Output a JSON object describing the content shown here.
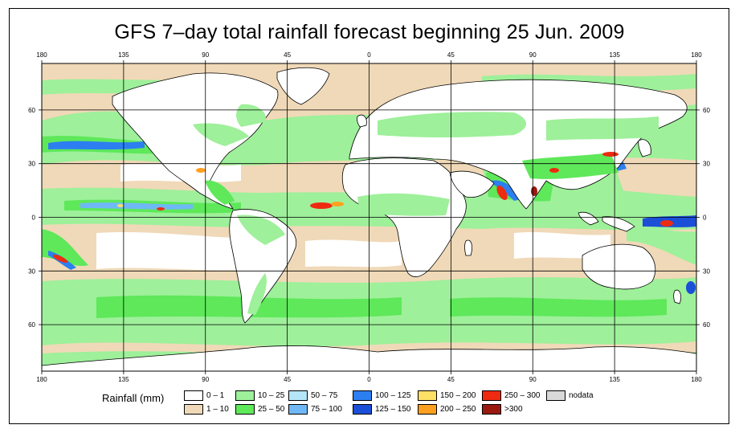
{
  "title": "GFS 7–day total rainfall forecast beginning 25 Jun. 2009",
  "axes": {
    "lon_labels": [
      "180",
      "135",
      "90",
      "45",
      "0",
      "45",
      "90",
      "135",
      "180"
    ],
    "lat_labels_left": [
      "60",
      "30",
      "0",
      "30",
      "60"
    ],
    "lat_labels_right": [
      "60",
      "30",
      "0",
      "30",
      "60"
    ]
  },
  "map": {
    "projection": "equirectangular",
    "lon_range": [
      -180,
      180
    ],
    "lat_range": [
      -86,
      86
    ],
    "grid": true,
    "grid_lons": [
      -135,
      -90,
      -45,
      0,
      45,
      90,
      135
    ],
    "grid_lats": [
      60,
      30,
      0,
      -30,
      -60
    ]
  },
  "legend": {
    "title": "Rainfall (mm)",
    "items": [
      {
        "label": "0 – 1",
        "color": "#ffffff"
      },
      {
        "label": "1 – 10",
        "color": "#f0d9b8"
      },
      {
        "label": "10 – 25",
        "color": "#9ef09a"
      },
      {
        "label": "25 – 50",
        "color": "#5ee85a"
      },
      {
        "label": "50 – 75",
        "color": "#b4e6f7"
      },
      {
        "label": "75 – 100",
        "color": "#6fb8f5"
      },
      {
        "label": "100 – 125",
        "color": "#2d7ef0"
      },
      {
        "label": "125 – 150",
        "color": "#1b4fd8"
      },
      {
        "label": "150 – 200",
        "color": "#ffe066"
      },
      {
        "label": "200 – 250",
        "color": "#ffa020"
      },
      {
        "label": "250 – 300",
        "color": "#ee2a10"
      },
      {
        "label": ">300",
        "color": "#9a1a10"
      },
      {
        "label": "nodata",
        "color": "#d9d9d9"
      }
    ]
  },
  "colors": {
    "ocean_base": "#f0d9b8",
    "land_base": "#ffffff",
    "coastline": "#000000",
    "grid": "#000000"
  }
}
